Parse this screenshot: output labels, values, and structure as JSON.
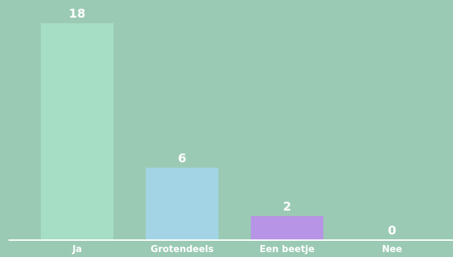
{
  "chart_data": {
    "type": "bar",
    "categories": [
      "Ja",
      "Grotendeels",
      "Een beetje",
      "Nee"
    ],
    "values": [
      18,
      6,
      2,
      0
    ],
    "colors": [
      "#a6dec5",
      "#a3d4e6",
      "#b794e5",
      "#a6dec5"
    ],
    "title": "",
    "xlabel": "",
    "ylabel": "",
    "ylim": [
      0,
      18
    ],
    "grid": false,
    "legend": "none",
    "baseline_color": "#ffffff",
    "label_color": "#ffffff"
  }
}
